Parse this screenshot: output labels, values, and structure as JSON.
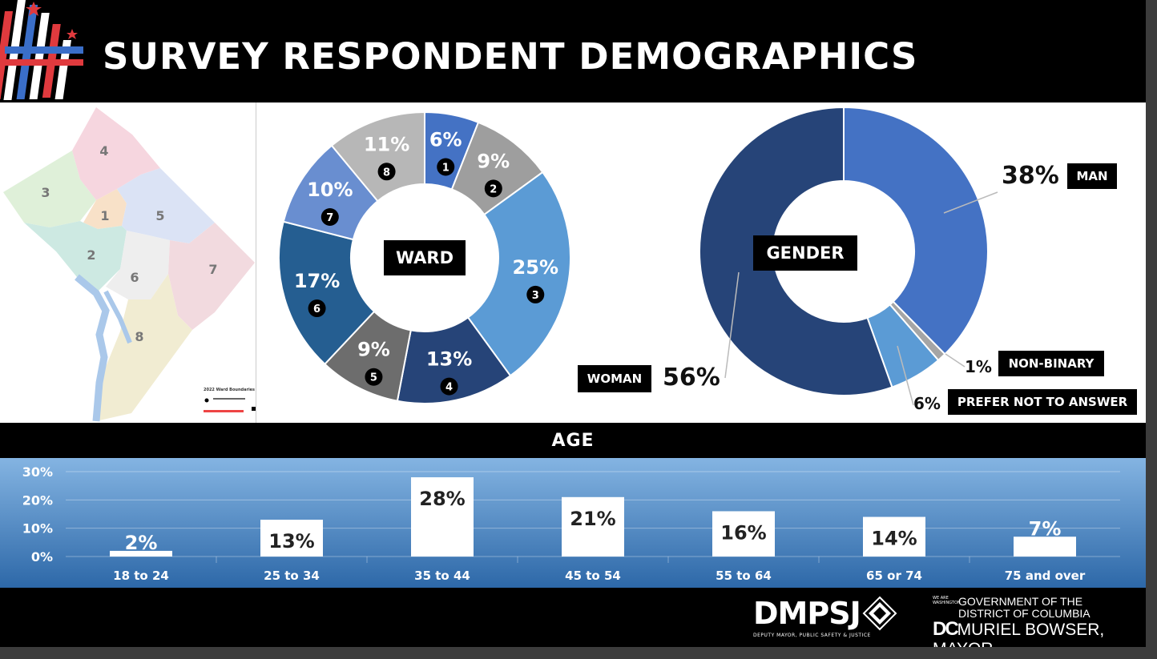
{
  "header": {
    "title": "SURVEY RESPONDENT DEMOGRAPHICS"
  },
  "map": {
    "ward_labels": [
      "1",
      "2",
      "3",
      "4",
      "5",
      "6",
      "7",
      "8"
    ],
    "legend_title": "2022 Ward Boundaries"
  },
  "chart_data": [
    {
      "type": "pie",
      "title": "WARD",
      "slices": [
        {
          "label": "1",
          "value": 6,
          "display": "6%",
          "color": "#4472c4"
        },
        {
          "label": "2",
          "value": 9,
          "display": "9%",
          "color": "#9e9e9e"
        },
        {
          "label": "3",
          "value": 25,
          "display": "25%",
          "color": "#5b9bd5"
        },
        {
          "label": "4",
          "value": 13,
          "display": "13%",
          "color": "#264478"
        },
        {
          "label": "5",
          "value": 9,
          "display": "9%",
          "color": "#6d6d6d"
        },
        {
          "label": "6",
          "value": 17,
          "display": "17%",
          "color": "#255e91"
        },
        {
          "label": "7",
          "value": 10,
          "display": "10%",
          "color": "#698ed0"
        },
        {
          "label": "8",
          "value": 11,
          "display": "11%",
          "color": "#b7b7b7"
        }
      ]
    },
    {
      "type": "pie",
      "title": "GENDER",
      "slices": [
        {
          "label": "MAN",
          "value": 38,
          "display": "38%",
          "color": "#4472c4"
        },
        {
          "label": "NON-BINARY",
          "value": 1,
          "display": "1%",
          "color": "#a5a5a5"
        },
        {
          "label": "PREFER NOT TO ANSWER",
          "value": 6,
          "display": "6%",
          "color": "#5b9bd5"
        },
        {
          "label": "WOMAN",
          "value": 56,
          "display": "56%",
          "color": "#264478"
        }
      ]
    },
    {
      "type": "bar",
      "title": "AGE",
      "categories": [
        "18 to 24",
        "25 to 34",
        "35 to 44",
        "45 to 54",
        "55 to 64",
        "65 or 74",
        "75 and over"
      ],
      "values": [
        2,
        13,
        28,
        21,
        16,
        14,
        7
      ],
      "display": [
        "2%",
        "13%",
        "28%",
        "21%",
        "16%",
        "14%",
        "7%"
      ],
      "yticks": [
        "0%",
        "10%",
        "20%",
        "30%"
      ],
      "ylim": [
        0,
        30
      ]
    }
  ],
  "footer": {
    "dmpsj": "DMPSJ",
    "dmpsj_sub": "DEPUTY MAYOR, PUBLIC SAFETY & JUSTICE",
    "gov_line1": "GOVERNMENT OF THE",
    "gov_line2": "DISTRICT OF COLUMBIA",
    "gov_line3": "MURIEL BOWSER, MAYOR",
    "we_are": "WE ARE WASHINGTON",
    "dc": "DC"
  }
}
